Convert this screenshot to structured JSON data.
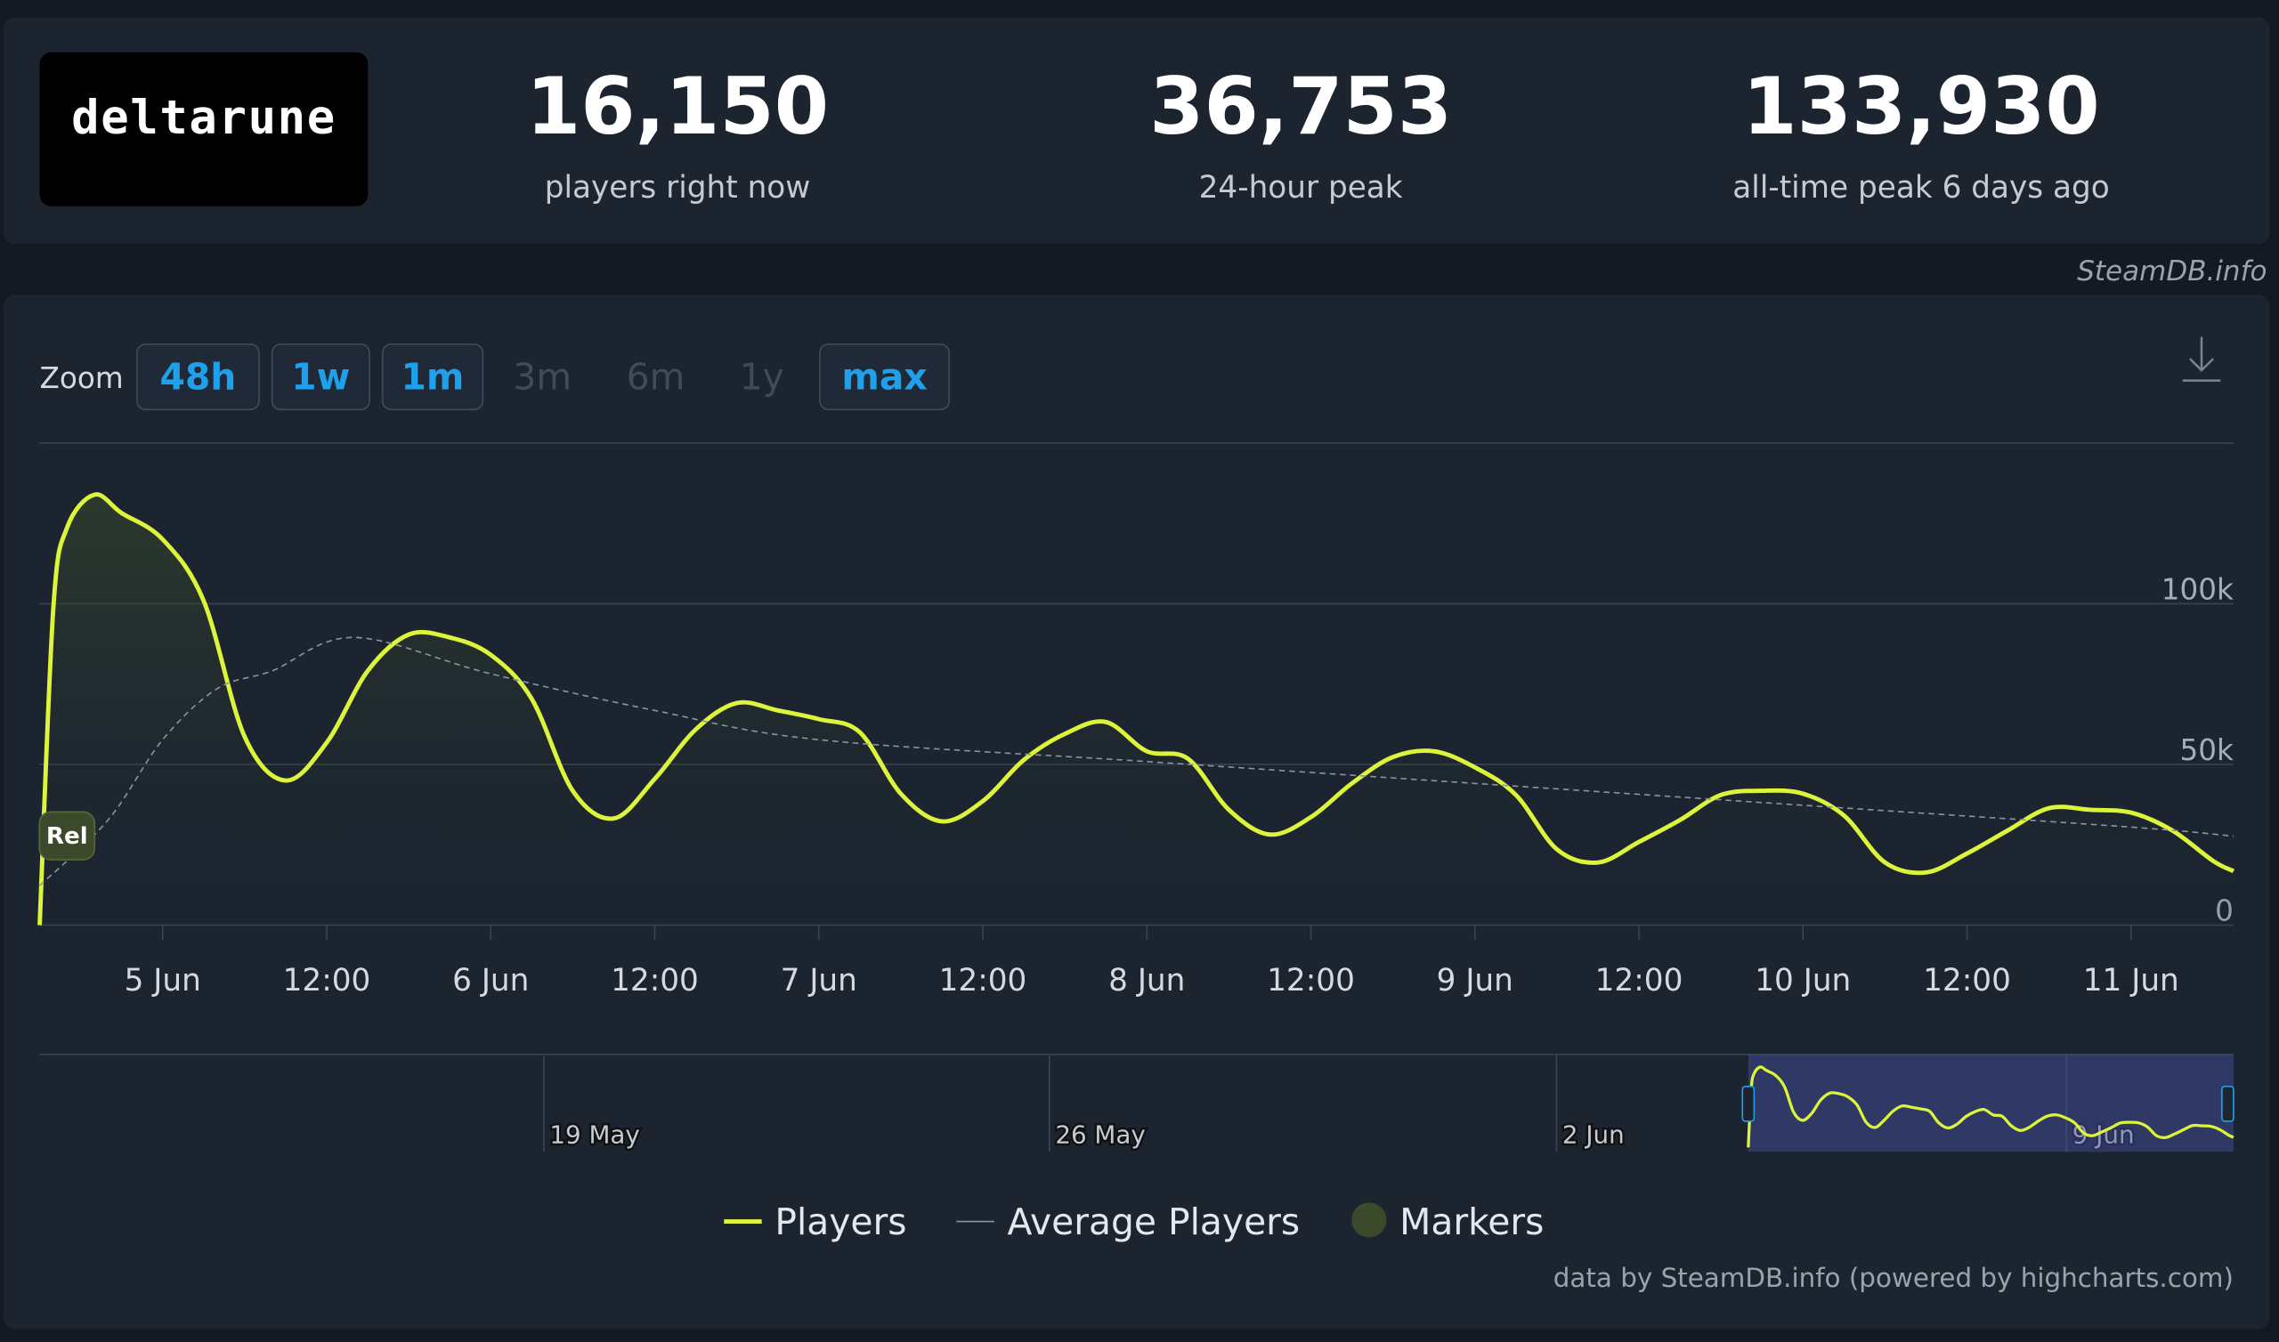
{
  "brand": {
    "logo": "deltarune",
    "credit": "SteamDB.info"
  },
  "stats": [
    {
      "value": "16,150",
      "label": "players right now"
    },
    {
      "value": "36,753",
      "label": "24-hour peak"
    },
    {
      "value": "133,930",
      "label": "all-time peak 6 days ago"
    }
  ],
  "zoom": {
    "label": "Zoom",
    "buttons": [
      {
        "label": "48h",
        "enabled": true
      },
      {
        "label": "1w",
        "enabled": true
      },
      {
        "label": "1m",
        "enabled": true
      },
      {
        "label": "3m",
        "enabled": false
      },
      {
        "label": "6m",
        "enabled": false
      },
      {
        "label": "1y",
        "enabled": false
      },
      {
        "label": "max",
        "enabled": true
      }
    ]
  },
  "chart_data": {
    "type": "line",
    "fill": true,
    "xlim": [
      -9,
      151.5
    ],
    "xticks": [
      {
        "value": 0,
        "label": "5 Jun"
      },
      {
        "value": 12,
        "label": "12:00"
      },
      {
        "value": 24,
        "label": "6 Jun"
      },
      {
        "value": 36,
        "label": "12:00"
      },
      {
        "value": 48,
        "label": "7 Jun"
      },
      {
        "value": 60,
        "label": "12:00"
      },
      {
        "value": 72,
        "label": "8 Jun"
      },
      {
        "value": 84,
        "label": "12:00"
      },
      {
        "value": 96,
        "label": "9 Jun"
      },
      {
        "value": 108,
        "label": "12:00"
      },
      {
        "value": 120,
        "label": "10 Jun"
      },
      {
        "value": 132,
        "label": "12:00"
      },
      {
        "value": 144,
        "label": "11 Jun"
      }
    ],
    "ylim": [
      0,
      150000
    ],
    "yticks": [
      0,
      {
        "value": 50000,
        "label": "50k"
      },
      {
        "value": 100000,
        "label": "100k"
      }
    ],
    "grid": true,
    "series": [
      {
        "name": "Players",
        "color": "#dcf53a",
        "x": [
          -9,
          -8,
          -7,
          -5,
          -3,
          0,
          3,
          6,
          9,
          12,
          15,
          18,
          21,
          24,
          27,
          30,
          33,
          36,
          39,
          42,
          45,
          48,
          51,
          54,
          57,
          60,
          63,
          66,
          69,
          72,
          75,
          78,
          81,
          84,
          87,
          90,
          93,
          96,
          99,
          102,
          105,
          108,
          111,
          114,
          117,
          120,
          123,
          126,
          129,
          132,
          135,
          138,
          141,
          144,
          147,
          150,
          151.5
        ],
        "values": [
          0,
          98600,
          123600,
          133900,
          128200,
          120000,
          100900,
          58600,
          45000,
          56800,
          79100,
          90400,
          89500,
          84100,
          70400,
          41800,
          33200,
          45500,
          60900,
          69100,
          66800,
          64100,
          60000,
          40900,
          32300,
          38600,
          51400,
          59500,
          63200,
          54100,
          51800,
          35900,
          28200,
          33600,
          44100,
          52300,
          54100,
          49100,
          40500,
          23600,
          19500,
          25900,
          32700,
          40500,
          41800,
          40900,
          34100,
          19500,
          16400,
          22300,
          29500,
          36400,
          35900,
          35000,
          29500,
          20000,
          16800
        ]
      },
      {
        "name": "Average Players",
        "color": "#8a939e",
        "dashed": true,
        "x": [
          -9,
          -4,
          0,
          4,
          8,
          14,
          24,
          36,
          48,
          72,
          96,
          120,
          144,
          151.5
        ],
        "values": [
          12300,
          32700,
          57700,
          73600,
          79100,
          89500,
          78200,
          66800,
          57700,
          50900,
          44100,
          37300,
          30500,
          27700
        ]
      }
    ],
    "markers": {
      "name": "Markers",
      "color": "#3c4a2c",
      "items": [
        {
          "label": "Rel",
          "x": -7
        }
      ]
    }
  },
  "navigator": {
    "labels": [
      "19 May",
      "26 May",
      "2 Jun",
      "9 Jun"
    ]
  },
  "footer": "data by SteamDB.info (powered by highcharts.com)"
}
